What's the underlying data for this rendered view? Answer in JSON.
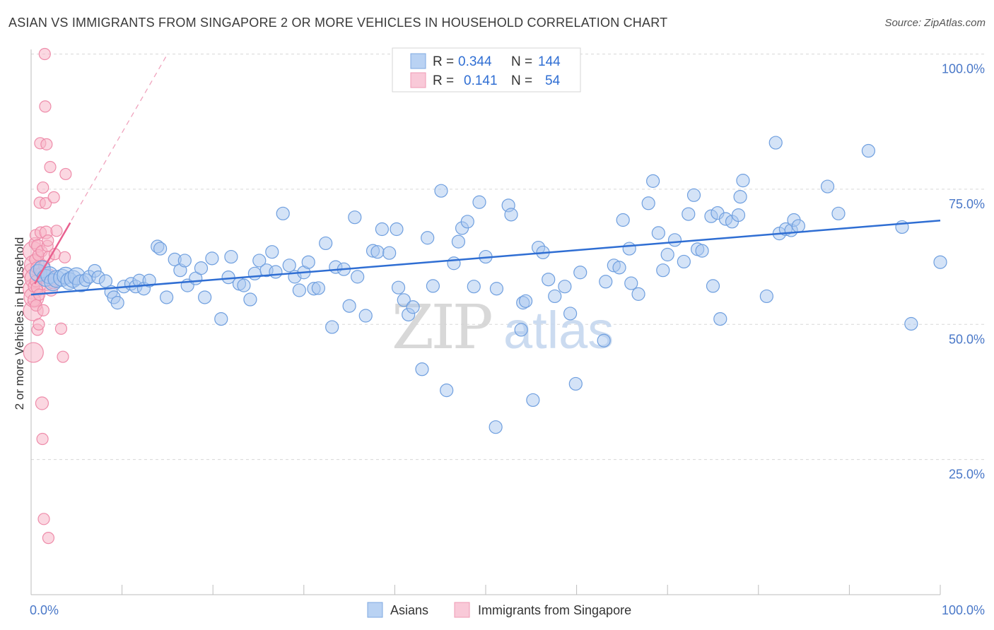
{
  "title": "ASIAN VS IMMIGRANTS FROM SINGAPORE 2 OR MORE VEHICLES IN HOUSEHOLD CORRELATION CHART",
  "source": "Source: ZipAtlas.com",
  "watermark": {
    "zip": "ZIP",
    "atlas": "atlas"
  },
  "colors": {
    "asian_fill": "#a9c8f0",
    "asian_stroke": "#6f9fdf",
    "asian_line": "#2f6ed3",
    "sing_fill": "#f7b6c8",
    "sing_stroke": "#ee8caa",
    "sing_line": "#e8608f",
    "axis_text": "#4a78c8",
    "grid": "#d8d8d8"
  },
  "legend": {
    "rows": [
      {
        "r_label": "R =",
        "r_value": "0.344",
        "n_label": "N =",
        "n_value": "144"
      },
      {
        "r_label": "R =",
        "r_value": "0.141",
        "n_label": "N =",
        "n_value": "54"
      }
    ]
  },
  "bottom_legend": {
    "asians": "Asians",
    "singapore": "Immigrants from Singapore"
  },
  "chart_data": {
    "type": "scatter",
    "title": "ASIAN VS IMMIGRANTS FROM SINGAPORE 2 OR MORE VEHICLES IN HOUSEHOLD CORRELATION CHART",
    "xlabel": "",
    "ylabel": "2 or more Vehicles in Household",
    "xlim": [
      0,
      100
    ],
    "ylim": [
      0,
      102
    ],
    "x_tick_labels": [
      "0.0%",
      "100.0%"
    ],
    "y_ticks": [
      25,
      50,
      75,
      100
    ],
    "y_tick_labels": [
      "25.0%",
      "50.0%",
      "75.0%",
      "100.0%"
    ],
    "grid": true,
    "legend_position": "top-center",
    "series": [
      {
        "name": "Asians",
        "R": 0.344,
        "N": 144,
        "trend": {
          "x": [
            0,
            100
          ],
          "y": [
            55.5,
            69.2
          ]
        },
        "points": [
          [
            0.8,
            59.5
          ],
          [
            1.2,
            60.2
          ],
          [
            1.6,
            58.6
          ],
          [
            2.0,
            59.1
          ],
          [
            2.4,
            57.8
          ],
          [
            2.8,
            58.4
          ],
          [
            3.4,
            58.6
          ],
          [
            3.8,
            59.0
          ],
          [
            4.2,
            58.0
          ],
          [
            4.6,
            58.4
          ],
          [
            5.0,
            58.9
          ],
          [
            5.5,
            57.6
          ],
          [
            6.0,
            58.2
          ],
          [
            6.4,
            58.8
          ],
          [
            7.0,
            59.9
          ],
          [
            7.4,
            58.7
          ],
          [
            8.2,
            58.0
          ],
          [
            8.8,
            56.0
          ],
          [
            9.1,
            55.0
          ],
          [
            9.5,
            54.0
          ],
          [
            10.2,
            57.0
          ],
          [
            11.0,
            57.5
          ],
          [
            11.5,
            57.0
          ],
          [
            11.9,
            58.1
          ],
          [
            12.4,
            56.6
          ],
          [
            13.0,
            58.1
          ],
          [
            13.9,
            64.4
          ],
          [
            14.2,
            64.0
          ],
          [
            14.9,
            55.0
          ],
          [
            15.8,
            62.0
          ],
          [
            16.4,
            60.0
          ],
          [
            16.9,
            61.8
          ],
          [
            17.2,
            57.2
          ],
          [
            18.1,
            58.5
          ],
          [
            18.7,
            60.4
          ],
          [
            19.1,
            55.0
          ],
          [
            19.9,
            62.2
          ],
          [
            20.9,
            51.0
          ],
          [
            21.7,
            58.7
          ],
          [
            22.0,
            62.5
          ],
          [
            22.9,
            57.5
          ],
          [
            23.4,
            57.2
          ],
          [
            24.1,
            54.6
          ],
          [
            24.6,
            59.4
          ],
          [
            25.1,
            61.8
          ],
          [
            25.9,
            60.0
          ],
          [
            26.5,
            63.4
          ],
          [
            26.9,
            59.7
          ],
          [
            27.7,
            70.5
          ],
          [
            28.4,
            60.9
          ],
          [
            29.0,
            58.8
          ],
          [
            29.5,
            56.3
          ],
          [
            30.0,
            59.6
          ],
          [
            30.5,
            61.5
          ],
          [
            31.1,
            56.6
          ],
          [
            31.6,
            56.7
          ],
          [
            32.4,
            65.0
          ],
          [
            33.1,
            49.5
          ],
          [
            33.5,
            60.6
          ],
          [
            34.4,
            60.2
          ],
          [
            35.0,
            53.4
          ],
          [
            35.6,
            69.8
          ],
          [
            35.9,
            58.8
          ],
          [
            36.8,
            51.6
          ],
          [
            37.6,
            63.6
          ],
          [
            38.1,
            63.4
          ],
          [
            38.6,
            67.6
          ],
          [
            39.4,
            63.2
          ],
          [
            40.2,
            67.6
          ],
          [
            40.4,
            56.8
          ],
          [
            41.0,
            54.5
          ],
          [
            41.5,
            51.8
          ],
          [
            42.0,
            53.2
          ],
          [
            43.0,
            41.7
          ],
          [
            43.6,
            66.0
          ],
          [
            44.2,
            57.1
          ],
          [
            45.1,
            74.7
          ],
          [
            45.7,
            37.8
          ],
          [
            46.5,
            61.3
          ],
          [
            47.0,
            65.3
          ],
          [
            47.4,
            67.8
          ],
          [
            48.0,
            69.0
          ],
          [
            48.7,
            57.0
          ],
          [
            49.3,
            72.6
          ],
          [
            50.0,
            62.5
          ],
          [
            51.1,
            31.0
          ],
          [
            51.2,
            56.6
          ],
          [
            52.5,
            72.0
          ],
          [
            52.8,
            70.3
          ],
          [
            53.9,
            49.0
          ],
          [
            54.1,
            54.0
          ],
          [
            54.4,
            54.3
          ],
          [
            55.2,
            36.0
          ],
          [
            55.8,
            64.2
          ],
          [
            56.3,
            63.3
          ],
          [
            56.9,
            58.3
          ],
          [
            57.6,
            55.2
          ],
          [
            58.7,
            57.0
          ],
          [
            59.3,
            52.0
          ],
          [
            59.9,
            39.0
          ],
          [
            60.4,
            59.6
          ],
          [
            63.0,
            47.0
          ],
          [
            63.2,
            57.9
          ],
          [
            64.1,
            60.9
          ],
          [
            64.7,
            60.5
          ],
          [
            65.1,
            69.3
          ],
          [
            65.8,
            64.0
          ],
          [
            66.0,
            57.6
          ],
          [
            66.8,
            55.6
          ],
          [
            67.9,
            72.4
          ],
          [
            68.4,
            76.5
          ],
          [
            69.0,
            66.9
          ],
          [
            69.5,
            60.0
          ],
          [
            70.0,
            62.9
          ],
          [
            70.8,
            65.6
          ],
          [
            71.8,
            61.6
          ],
          [
            72.3,
            70.4
          ],
          [
            72.9,
            73.9
          ],
          [
            73.3,
            63.9
          ],
          [
            73.8,
            63.6
          ],
          [
            74.8,
            70.0
          ],
          [
            75.0,
            57.1
          ],
          [
            75.5,
            70.6
          ],
          [
            75.8,
            51.0
          ],
          [
            76.4,
            69.5
          ],
          [
            77.1,
            69.0
          ],
          [
            77.8,
            70.2
          ],
          [
            78.0,
            73.6
          ],
          [
            78.3,
            76.6
          ],
          [
            80.9,
            55.2
          ],
          [
            81.9,
            83.6
          ],
          [
            82.3,
            66.8
          ],
          [
            83.0,
            67.6
          ],
          [
            83.6,
            67.4
          ],
          [
            83.9,
            69.3
          ],
          [
            84.4,
            68.2
          ],
          [
            87.6,
            75.5
          ],
          [
            88.8,
            70.5
          ],
          [
            92.1,
            82.1
          ],
          [
            95.8,
            68.0
          ],
          [
            96.8,
            50.1
          ],
          [
            100.0,
            61.5
          ]
        ]
      },
      {
        "name": "Immigrants from Singapore",
        "R": 0.141,
        "N": 54,
        "trend": {
          "x": [
            0.4,
            4.3
          ],
          "y": [
            57.5,
            68.8
          ]
        },
        "trend_extension": {
          "x": [
            0.4,
            15.0
          ],
          "y": [
            57.5,
            100.0
          ]
        },
        "points": [
          [
            0.05,
            63.5
          ],
          [
            0.05,
            59.5
          ],
          [
            0.06,
            56.5
          ],
          [
            0.08,
            52.5
          ],
          [
            0.1,
            44.8
          ],
          [
            0.15,
            55.0
          ],
          [
            0.2,
            61.0
          ],
          [
            0.25,
            58.5
          ],
          [
            0.3,
            57.0
          ],
          [
            0.35,
            54.5
          ],
          [
            0.4,
            65.0
          ],
          [
            0.45,
            62.0
          ],
          [
            0.5,
            66.5
          ],
          [
            0.5,
            58.0
          ],
          [
            0.55,
            53.5
          ],
          [
            0.6,
            60.5
          ],
          [
            0.65,
            56.8
          ],
          [
            0.7,
            49.0
          ],
          [
            0.75,
            64.5
          ],
          [
            0.8,
            62.8
          ],
          [
            0.85,
            50.0
          ],
          [
            0.9,
            55.5
          ],
          [
            0.95,
            72.5
          ],
          [
            1.0,
            83.5
          ],
          [
            1.05,
            67.0
          ],
          [
            1.1,
            59.5
          ],
          [
            1.15,
            63.5
          ],
          [
            1.2,
            35.4
          ],
          [
            1.25,
            28.8
          ],
          [
            1.3,
            75.3
          ],
          [
            1.35,
            52.6
          ],
          [
            1.4,
            14.0
          ],
          [
            1.45,
            60.8
          ],
          [
            1.5,
            100.0
          ],
          [
            1.55,
            90.3
          ],
          [
            1.6,
            72.4
          ],
          [
            1.65,
            67.0
          ],
          [
            1.7,
            83.3
          ],
          [
            1.75,
            57.3
          ],
          [
            1.8,
            64.5
          ],
          [
            1.85,
            65.5
          ],
          [
            1.9,
            10.5
          ],
          [
            1.95,
            62.5
          ],
          [
            2.0,
            59.2
          ],
          [
            2.1,
            79.1
          ],
          [
            2.2,
            56.4
          ],
          [
            2.4,
            57.6
          ],
          [
            2.5,
            73.5
          ],
          [
            2.6,
            63.0
          ],
          [
            2.8,
            67.3
          ],
          [
            3.3,
            49.2
          ],
          [
            3.5,
            44.0
          ],
          [
            3.7,
            62.4
          ],
          [
            3.8,
            77.8
          ]
        ]
      }
    ]
  }
}
